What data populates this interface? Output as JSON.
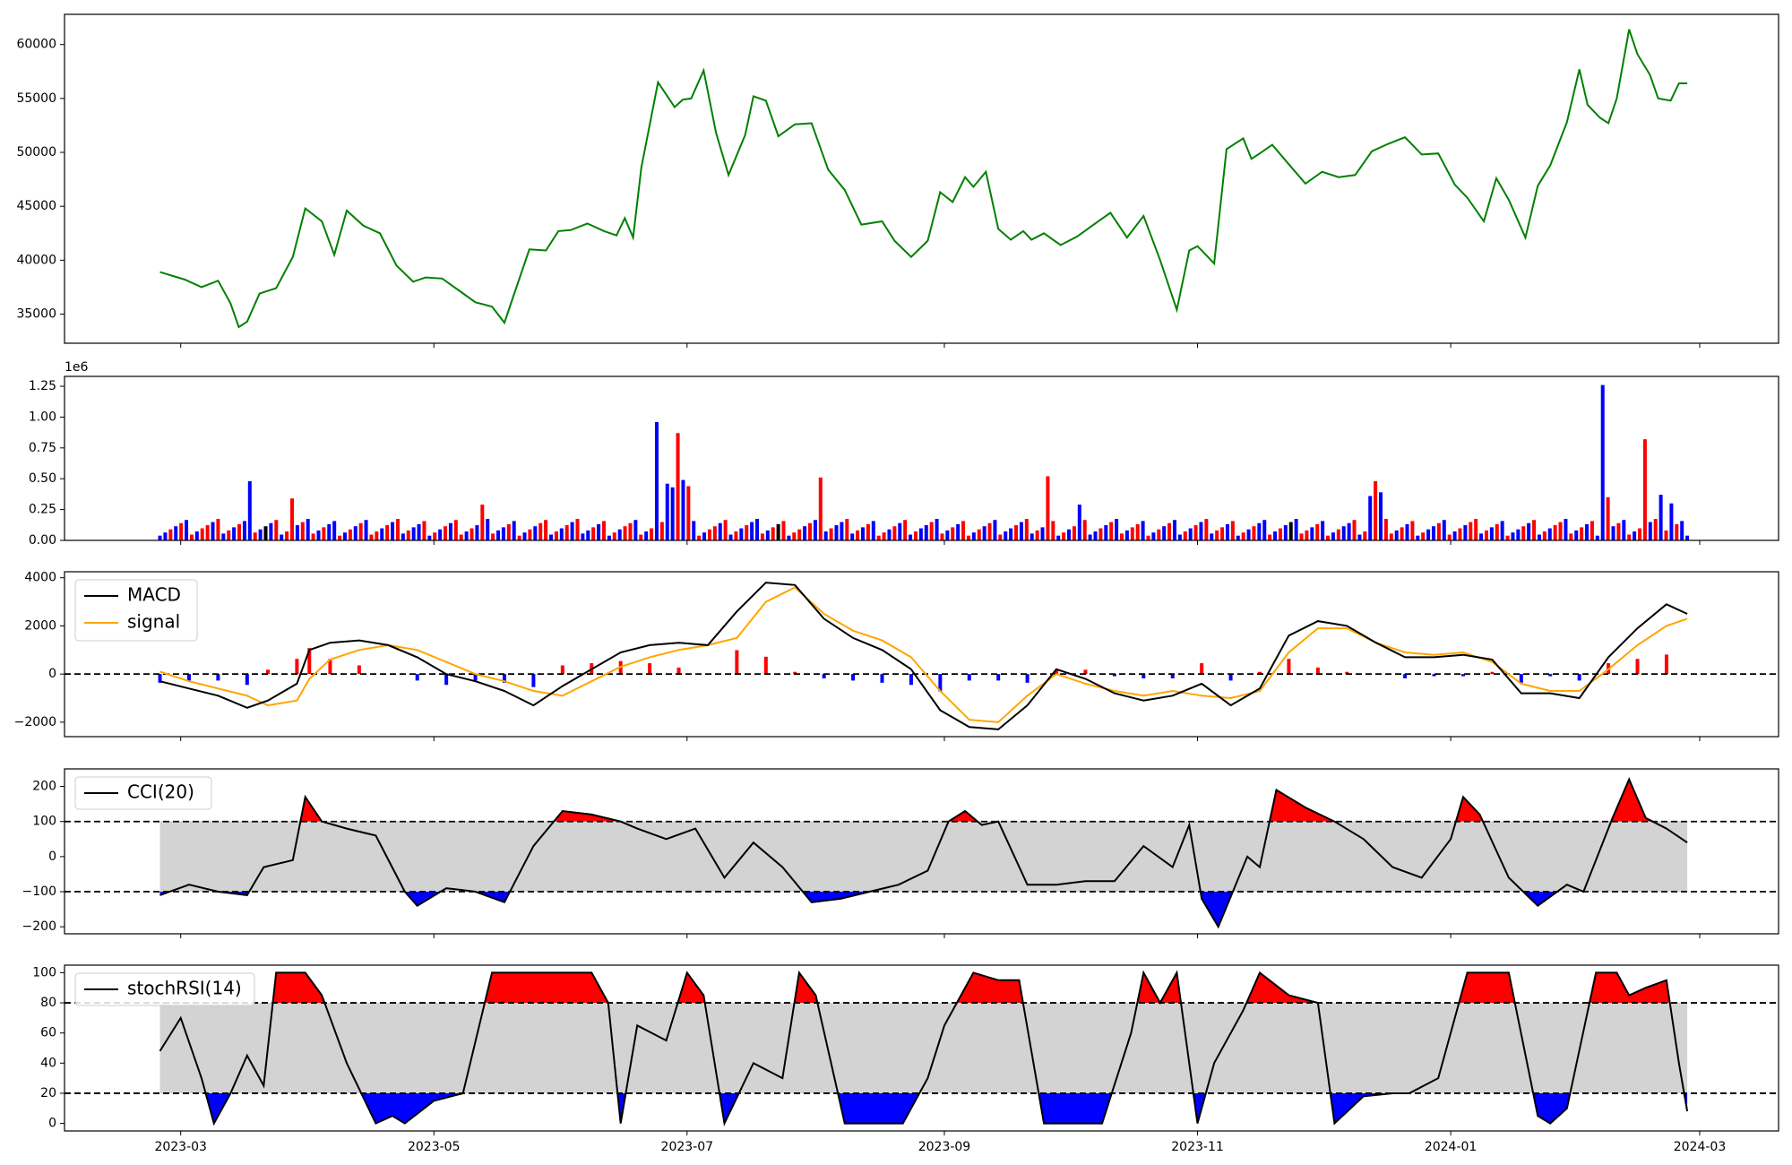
{
  "x_ticks": [
    "2023-03",
    "2023-05",
    "2023-07",
    "2023-09",
    "2023-11",
    "2024-01",
    "2024-03"
  ],
  "x_tick_dates": [
    "2023-03-01",
    "2023-05-01",
    "2023-07-01",
    "2023-09-01",
    "2023-11-01",
    "2024-01-01",
    "2024-03-01"
  ],
  "colors": {
    "price": "#008000",
    "up": "#ff0000",
    "down": "#0000ff",
    "neutral": "#000000",
    "macd": "#000000",
    "signal": "#ffa500",
    "band": "#d3d3d3"
  },
  "chart_data": [
    {
      "type": "line",
      "name": "price",
      "xlim": [
        "2023-02-01",
        "2024-03-20"
      ],
      "ylim": [
        32300,
        62800
      ],
      "yticks": [
        "35000",
        "40000",
        "45000",
        "50000",
        "55000",
        "60000"
      ],
      "x": [
        "2023-02-24",
        "2023-03-02",
        "2023-03-06",
        "2023-03-10",
        "2023-03-13",
        "2023-03-15",
        "2023-03-17",
        "2023-03-20",
        "2023-03-24",
        "2023-03-28",
        "2023-03-31",
        "2023-04-04",
        "2023-04-07",
        "2023-04-10",
        "2023-04-14",
        "2023-04-18",
        "2023-04-22",
        "2023-04-26",
        "2023-04-29",
        "2023-05-03",
        "2023-05-07",
        "2023-05-11",
        "2023-05-15",
        "2023-05-18",
        "2023-05-20",
        "2023-05-24",
        "2023-05-28",
        "2023-05-31",
        "2023-06-03",
        "2023-06-07",
        "2023-06-11",
        "2023-06-14",
        "2023-06-16",
        "2023-06-18",
        "2023-06-20",
        "2023-06-24",
        "2023-06-28",
        "2023-06-30",
        "2023-07-02",
        "2023-07-05",
        "2023-07-08",
        "2023-07-11",
        "2023-07-15",
        "2023-07-17",
        "2023-07-20",
        "2023-07-23",
        "2023-07-27",
        "2023-07-31",
        "2023-08-04",
        "2023-08-08",
        "2023-08-12",
        "2023-08-17",
        "2023-08-20",
        "2023-08-24",
        "2023-08-28",
        "2023-08-31",
        "2023-09-03",
        "2023-09-06",
        "2023-09-08",
        "2023-09-11",
        "2023-09-14",
        "2023-09-17",
        "2023-09-20",
        "2023-09-22",
        "2023-09-25",
        "2023-09-29",
        "2023-10-03",
        "2023-10-07",
        "2023-10-11",
        "2023-10-15",
        "2023-10-19",
        "2023-10-23",
        "2023-10-27",
        "2023-10-30",
        "2023-11-01",
        "2023-11-03",
        "2023-11-05",
        "2023-11-08",
        "2023-11-12",
        "2023-11-14",
        "2023-11-16",
        "2023-11-19",
        "2023-11-23",
        "2023-11-27",
        "2023-12-01",
        "2023-12-05",
        "2023-12-09",
        "2023-12-13",
        "2023-12-17",
        "2023-12-21",
        "2023-12-25",
        "2023-12-29",
        "2024-01-02",
        "2024-01-05",
        "2024-01-09",
        "2024-01-12",
        "2024-01-15",
        "2024-01-19",
        "2024-01-22",
        "2024-01-25",
        "2024-01-29",
        "2024-02-01",
        "2024-02-03",
        "2024-02-06",
        "2024-02-08",
        "2024-02-10",
        "2024-02-13",
        "2024-02-15",
        "2024-02-18",
        "2024-02-20",
        "2024-02-23",
        "2024-02-25",
        "2024-02-27"
      ],
      "y": [
        38900,
        38200,
        37500,
        38100,
        36000,
        33800,
        34300,
        36900,
        37400,
        40300,
        44800,
        43600,
        40500,
        44600,
        43200,
        42500,
        39500,
        38000,
        38400,
        38300,
        37200,
        36100,
        35700,
        34200,
        36500,
        41000,
        40900,
        42700,
        42800,
        43400,
        42700,
        42300,
        43900,
        42100,
        48600,
        56500,
        54200,
        54900,
        55000,
        57600,
        51800,
        47900,
        51600,
        55200,
        54800,
        51500,
        52600,
        52700,
        48400,
        46500,
        43300,
        43600,
        41800,
        40300,
        41800,
        46300,
        45400,
        47700,
        46800,
        48200,
        42900,
        41900,
        42700,
        41900,
        42500,
        41400,
        42200,
        43300,
        44400,
        42100,
        44100,
        40000,
        35400,
        40900,
        41300,
        40500,
        39700,
        50300,
        51300,
        49400,
        49900,
        50700,
        48900,
        47100,
        48200,
        47700,
        47900,
        50100,
        50800,
        51400,
        49800,
        49900,
        47000,
        45800,
        43600,
        47600,
        45600,
        42100,
        46900,
        48800,
        52800,
        57700,
        54400,
        53200,
        52700,
        55000,
        61400,
        59100,
        57200,
        55000,
        54800,
        56400,
        56400
      ]
    },
    {
      "type": "bar",
      "name": "volume",
      "ylim": [
        0,
        1330000
      ],
      "y_multiplier": "1e6",
      "yticks": [
        "0.00",
        "0.25",
        "0.50",
        "0.75",
        "1.00",
        "1.25"
      ],
      "x_start": "2023-02-24",
      "x_end": "2024-02-27",
      "count": 290,
      "marks": [
        {
          "i": 17,
          "v": 480000
        },
        {
          "i": 25,
          "v": 340000
        },
        {
          "i": 61,
          "v": 290000
        },
        {
          "i": 94,
          "v": 960000
        },
        {
          "i": 96,
          "v": 460000
        },
        {
          "i": 97,
          "v": 430000
        },
        {
          "i": 98,
          "v": 870000
        },
        {
          "i": 99,
          "v": 490000
        },
        {
          "i": 100,
          "v": 440000
        },
        {
          "i": 125,
          "v": 510000
        },
        {
          "i": 168,
          "v": 520000
        },
        {
          "i": 174,
          "v": 290000
        },
        {
          "i": 229,
          "v": 360000
        },
        {
          "i": 230,
          "v": 480000
        },
        {
          "i": 231,
          "v": 390000
        },
        {
          "i": 273,
          "v": 1260000
        },
        {
          "i": 274,
          "v": 350000
        },
        {
          "i": 281,
          "v": 820000
        },
        {
          "i": 284,
          "v": 370000
        },
        {
          "i": 286,
          "v": 300000
        }
      ],
      "base_level": 110000
    },
    {
      "type": "line",
      "name": "macd",
      "ylim": [
        -2600,
        4250
      ],
      "yticks": [
        "−2000",
        "0",
        "2000",
        "4000"
      ],
      "legend": [
        "MACD",
        "signal"
      ],
      "x": [
        "2023-02-24",
        "2023-03-03",
        "2023-03-10",
        "2023-03-17",
        "2023-03-22",
        "2023-03-29",
        "2023-04-01",
        "2023-04-06",
        "2023-04-13",
        "2023-04-20",
        "2023-04-27",
        "2023-05-04",
        "2023-05-11",
        "2023-05-18",
        "2023-05-25",
        "2023-06-01",
        "2023-06-08",
        "2023-06-15",
        "2023-06-22",
        "2023-06-29",
        "2023-07-06",
        "2023-07-13",
        "2023-07-20",
        "2023-07-27",
        "2023-08-03",
        "2023-08-10",
        "2023-08-17",
        "2023-08-24",
        "2023-08-31",
        "2023-09-07",
        "2023-09-14",
        "2023-09-21",
        "2023-09-28",
        "2023-10-05",
        "2023-10-12",
        "2023-10-19",
        "2023-10-26",
        "2023-11-02",
        "2023-11-09",
        "2023-11-16",
        "2023-11-23",
        "2023-11-30",
        "2023-12-07",
        "2023-12-14",
        "2023-12-21",
        "2023-12-28",
        "2024-01-04",
        "2024-01-11",
        "2024-01-18",
        "2024-01-25",
        "2024-02-01",
        "2024-02-08",
        "2024-02-15",
        "2024-02-22",
        "2024-02-27"
      ],
      "series": [
        {
          "name": "MACD",
          "values": [
            -300,
            -600,
            -900,
            -1400,
            -1100,
            -400,
            1000,
            1300,
            1400,
            1200,
            700,
            0,
            -300,
            -700,
            -1300,
            -500,
            200,
            900,
            1200,
            1300,
            1200,
            2600,
            3800,
            3700,
            2300,
            1500,
            1000,
            200,
            -1500,
            -2200,
            -2300,
            -1300,
            200,
            -200,
            -800,
            -1100,
            -900,
            -400,
            -1300,
            -600,
            1600,
            2200,
            2000,
            1300,
            700,
            700,
            800,
            600,
            -800,
            -800,
            -1000,
            700,
            1900,
            2900,
            2500
          ]
        },
        {
          "name": "signal",
          "values": [
            100,
            -300,
            -600,
            -900,
            -1300,
            -1100,
            -200,
            600,
            1000,
            1200,
            1000,
            500,
            0,
            -300,
            -700,
            -900,
            -300,
            300,
            700,
            1000,
            1200,
            1500,
            3000,
            3600,
            2500,
            1800,
            1400,
            700,
            -700,
            -1900,
            -2000,
            -900,
            0,
            -400,
            -700,
            -900,
            -700,
            -900,
            -1000,
            -700,
            900,
            1900,
            1900,
            1300,
            900,
            800,
            900,
            500,
            -400,
            -700,
            -700,
            200,
            1200,
            2000,
            2300
          ]
        }
      ],
      "reference_line": 0
    },
    {
      "type": "line",
      "name": "cci",
      "ylim": [
        -220,
        250
      ],
      "yticks": [
        "−200",
        "−100",
        "0",
        "100",
        "200"
      ],
      "legend": [
        "CCI(20)"
      ],
      "bands": [
        -100,
        100
      ],
      "x": [
        "2023-02-24",
        "2023-03-03",
        "2023-03-10",
        "2023-03-17",
        "2023-03-21",
        "2023-03-28",
        "2023-03-31",
        "2023-04-04",
        "2023-04-10",
        "2023-04-17",
        "2023-04-24",
        "2023-04-27",
        "2023-05-04",
        "2023-05-11",
        "2023-05-18",
        "2023-05-25",
        "2023-06-01",
        "2023-06-08",
        "2023-06-15",
        "2023-06-19",
        "2023-06-26",
        "2023-07-03",
        "2023-07-10",
        "2023-07-17",
        "2023-07-24",
        "2023-07-31",
        "2023-08-07",
        "2023-08-14",
        "2023-08-21",
        "2023-08-28",
        "2023-09-02",
        "2023-09-06",
        "2023-09-10",
        "2023-09-14",
        "2023-09-21",
        "2023-09-28",
        "2023-10-05",
        "2023-10-12",
        "2023-10-19",
        "2023-10-26",
        "2023-10-30",
        "2023-11-02",
        "2023-11-06",
        "2023-11-13",
        "2023-11-16",
        "2023-11-20",
        "2023-11-27",
        "2023-12-04",
        "2023-12-11",
        "2023-12-18",
        "2023-12-25",
        "2024-01-01",
        "2024-01-04",
        "2024-01-08",
        "2024-01-15",
        "2024-01-22",
        "2024-01-29",
        "2024-02-02",
        "2024-02-09",
        "2024-02-13",
        "2024-02-17",
        "2024-02-22",
        "2024-02-27"
      ],
      "y": [
        -110,
        -80,
        -100,
        -110,
        -30,
        -10,
        170,
        100,
        80,
        60,
        -100,
        -140,
        -90,
        -100,
        -130,
        30,
        130,
        120,
        100,
        80,
        50,
        80,
        -60,
        40,
        -30,
        -130,
        -120,
        -100,
        -80,
        -40,
        100,
        130,
        90,
        100,
        -80,
        -80,
        -70,
        -70,
        30,
        -30,
        90,
        -120,
        -200,
        0,
        -30,
        190,
        140,
        100,
        50,
        -30,
        -60,
        50,
        170,
        120,
        -60,
        -140,
        -80,
        -100,
        110,
        220,
        110,
        80,
        40
      ]
    },
    {
      "type": "line",
      "name": "stochrsi",
      "ylim": [
        -5,
        105
      ],
      "yticks": [
        "0",
        "20",
        "40",
        "60",
        "80",
        "100"
      ],
      "legend": [
        "stochRSI(14)"
      ],
      "bands": [
        20,
        80
      ],
      "x": [
        "2023-02-24",
        "2023-03-01",
        "2023-03-06",
        "2023-03-09",
        "2023-03-13",
        "2023-03-17",
        "2023-03-21",
        "2023-03-24",
        "2023-03-31",
        "2023-04-04",
        "2023-04-10",
        "2023-04-17",
        "2023-04-21",
        "2023-04-24",
        "2023-05-01",
        "2023-05-08",
        "2023-05-15",
        "2023-05-20",
        "2023-05-24",
        "2023-06-01",
        "2023-06-08",
        "2023-06-12",
        "2023-06-15",
        "2023-06-19",
        "2023-06-26",
        "2023-07-01",
        "2023-07-05",
        "2023-07-10",
        "2023-07-17",
        "2023-07-24",
        "2023-07-28",
        "2023-08-01",
        "2023-08-08",
        "2023-08-15",
        "2023-08-22",
        "2023-08-28",
        "2023-09-01",
        "2023-09-08",
        "2023-09-14",
        "2023-09-19",
        "2023-09-25",
        "2023-10-02",
        "2023-10-09",
        "2023-10-16",
        "2023-10-19",
        "2023-10-23",
        "2023-10-27",
        "2023-11-01",
        "2023-11-05",
        "2023-11-12",
        "2023-11-16",
        "2023-11-23",
        "2023-11-30",
        "2023-12-04",
        "2023-12-11",
        "2023-12-18",
        "2023-12-22",
        "2023-12-29",
        "2024-01-05",
        "2024-01-09",
        "2024-01-15",
        "2024-01-22",
        "2024-01-25",
        "2024-01-29",
        "2024-02-05",
        "2024-02-10",
        "2024-02-13",
        "2024-02-17",
        "2024-02-22",
        "2024-02-25",
        "2024-02-27"
      ],
      "y": [
        48,
        70,
        30,
        0,
        20,
        45,
        25,
        100,
        100,
        85,
        40,
        0,
        5,
        0,
        15,
        20,
        100,
        100,
        100,
        100,
        100,
        80,
        0,
        65,
        55,
        100,
        85,
        0,
        40,
        30,
        100,
        85,
        0,
        0,
        0,
        30,
        65,
        100,
        95,
        95,
        0,
        0,
        0,
        60,
        100,
        80,
        100,
        0,
        40,
        75,
        100,
        85,
        80,
        0,
        18,
        20,
        20,
        30,
        100,
        100,
        100,
        5,
        0,
        10,
        100,
        100,
        85,
        90,
        95,
        40,
        8
      ]
    }
  ]
}
